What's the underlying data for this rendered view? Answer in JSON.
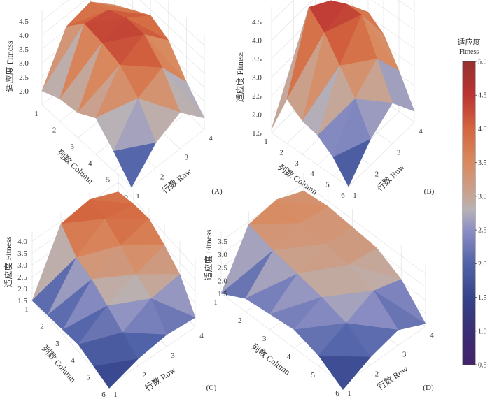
{
  "chart_data": {
    "type": "surface3d",
    "colorbar": {
      "title_cn": "适应度",
      "title_en": "Fitness",
      "range": [
        0.5,
        5.0
      ],
      "ticks": [
        "5.0",
        "4.5",
        "4.0",
        "3.5",
        "3.0",
        "2.5",
        "2.0",
        "1.5",
        "1.0",
        "0.5"
      ],
      "colors": [
        {
          "v": 0.5,
          "c": "#43246b"
        },
        {
          "v": 1.0,
          "c": "#3a2e74"
        },
        {
          "v": 1.5,
          "c": "#36448a"
        },
        {
          "v": 2.0,
          "c": "#5163a8"
        },
        {
          "v": 2.5,
          "c": "#8c8fc4"
        },
        {
          "v": 2.8,
          "c": "#b8b2b6"
        },
        {
          "v": 3.0,
          "c": "#c7a595"
        },
        {
          "v": 3.5,
          "c": "#d98a5f"
        },
        {
          "v": 4.0,
          "c": "#d4663f"
        },
        {
          "v": 4.5,
          "c": "#bb3432"
        },
        {
          "v": 5.0,
          "c": "#96302e"
        }
      ]
    },
    "panels": [
      {
        "id": "A",
        "label": "(A)",
        "zlabel": "适应度 Fitness",
        "xlabel": "列数 Column",
        "ylabel": "行数 Row",
        "zticks": [
          "2.0",
          "2.5",
          "3.0",
          "3.5",
          "4.0",
          "4.5"
        ],
        "zrange": [
          1.5,
          4.5
        ],
        "columns": [
          "1",
          "2",
          "3",
          "4",
          "5",
          "6"
        ],
        "rows": [
          "1",
          "2",
          "3",
          "4"
        ],
        "z": [
          [
            2.0,
            3.6,
            3.8,
            3.0
          ],
          [
            2.3,
            4.3,
            4.1,
            3.4
          ],
          [
            2.4,
            4.2,
            4.4,
            3.8
          ],
          [
            2.8,
            4.0,
            4.4,
            3.5
          ],
          [
            2.2,
            3.4,
            3.8,
            2.6
          ],
          [
            1.5,
            2.4,
            2.8,
            1.9
          ]
        ]
      },
      {
        "id": "B",
        "label": "(B)",
        "zlabel": "适应度 Fitness",
        "xlabel": "列数 Column",
        "ylabel": "行数 Row",
        "zticks": [
          "1.5",
          "2.0",
          "2.5",
          "3.0",
          "3.5",
          "4.0",
          "4.5"
        ],
        "zrange": [
          1.5,
          4.5
        ],
        "columns": [
          "1",
          "2",
          "3",
          "4",
          "5",
          "6"
        ],
        "rows": [
          "1",
          "2",
          "3",
          "4"
        ],
        "z": [
          [
            1.6,
            2.9,
            3.2,
            2.6
          ],
          [
            2.7,
            4.6,
            4.2,
            3.3
          ],
          [
            2.4,
            4.2,
            4.4,
            3.6
          ],
          [
            2.3,
            3.6,
            4.4,
            3.3
          ],
          [
            2.0,
            3.0,
            3.5,
            2.6
          ],
          [
            1.5,
            2.2,
            2.6,
            1.8
          ]
        ]
      },
      {
        "id": "C",
        "label": "(C)",
        "zlabel": "适应度 Fitness",
        "xlabel": "列数 Column",
        "ylabel": "行数 Row",
        "zticks": [
          "1.5",
          "2.0",
          "2.5",
          "3.0",
          "3.5",
          "4.0"
        ],
        "zrange": [
          1.5,
          4.0
        ],
        "columns": [
          "1",
          "2",
          "3",
          "4",
          "5",
          "6"
        ],
        "rows": [
          "1",
          "2",
          "3",
          "4"
        ],
        "z": [
          [
            1.5,
            3.9,
            4.1,
            3.6
          ],
          [
            1.6,
            3.2,
            4.0,
            3.8
          ],
          [
            1.7,
            3.0,
            3.6,
            3.9
          ],
          [
            1.8,
            2.6,
            3.1,
            3.5
          ],
          [
            1.6,
            2.2,
            2.8,
            3.0
          ],
          [
            1.4,
            1.8,
            2.0,
            1.9
          ]
        ]
      },
      {
        "id": "D",
        "label": "(D)",
        "zlabel": "适应度 Fitness",
        "xlabel": "列数 Column",
        "ylabel": "行数 Row",
        "zticks": [
          "1.5",
          "2.0",
          "2.5",
          "3.0",
          "3.5"
        ],
        "zrange": [
          1.5,
          3.5
        ],
        "columns": [
          "1",
          "2",
          "3",
          "4",
          "5",
          "6"
        ],
        "rows": [
          "1",
          "2",
          "3",
          "4"
        ],
        "z": [
          [
            1.5,
            3.4,
            3.6,
            3.2
          ],
          [
            2.0,
            3.1,
            3.4,
            3.3
          ],
          [
            2.1,
            2.9,
            3.3,
            3.2
          ],
          [
            2.2,
            2.7,
            3.2,
            3.1
          ],
          [
            1.9,
            2.4,
            2.9,
            2.6
          ],
          [
            1.3,
            1.8,
            2.1,
            1.6
          ]
        ]
      }
    ]
  }
}
